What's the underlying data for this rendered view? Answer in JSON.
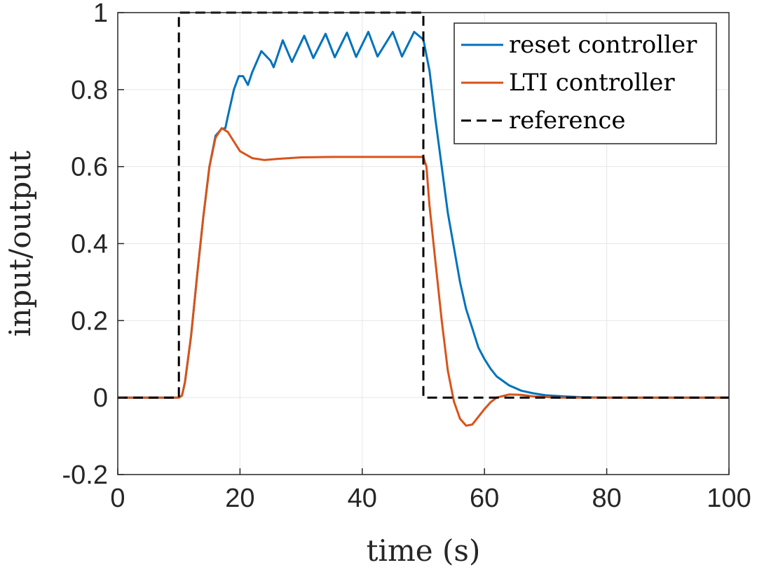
{
  "chart_data": {
    "type": "line",
    "xlabel": "time (s)",
    "ylabel": "input/output",
    "xlim": [
      0,
      100
    ],
    "ylim": [
      -0.2,
      1
    ],
    "xticks": [
      0,
      20,
      40,
      60,
      80,
      100
    ],
    "yticks": [
      -0.2,
      0,
      0.2,
      0.4,
      0.6,
      0.8,
      1
    ],
    "x_tick_labels": [
      "0",
      "20",
      "40",
      "60",
      "80",
      "100"
    ],
    "y_tick_labels": [
      "-0.2",
      "0",
      "0.2",
      "0.4",
      "0.6",
      "0.8",
      "1"
    ],
    "grid": true,
    "legend_position": "top-right",
    "series": [
      {
        "name": "reset controller",
        "color": "#0072BD",
        "style": "solid",
        "points": [
          [
            0,
            0
          ],
          [
            10,
            0
          ],
          [
            10.5,
            0.005
          ],
          [
            11,
            0.04
          ],
          [
            12,
            0.16
          ],
          [
            13,
            0.32
          ],
          [
            14,
            0.47
          ],
          [
            15,
            0.6
          ],
          [
            16,
            0.68
          ],
          [
            17,
            0.698
          ],
          [
            17.6,
            0.7
          ],
          [
            18,
            0.73
          ],
          [
            19,
            0.8
          ],
          [
            19.8,
            0.835
          ],
          [
            20.5,
            0.835
          ],
          [
            21.3,
            0.812
          ],
          [
            22,
            0.845
          ],
          [
            23.5,
            0.9
          ],
          [
            25,
            0.875
          ],
          [
            25.5,
            0.858
          ],
          [
            27,
            0.928
          ],
          [
            28.5,
            0.872
          ],
          [
            30.5,
            0.94
          ],
          [
            32,
            0.882
          ],
          [
            34,
            0.945
          ],
          [
            35.5,
            0.884
          ],
          [
            37.5,
            0.948
          ],
          [
            39,
            0.885
          ],
          [
            41,
            0.95
          ],
          [
            42.5,
            0.886
          ],
          [
            45,
            0.95
          ],
          [
            46.5,
            0.886
          ],
          [
            48.5,
            0.95
          ],
          [
            50,
            0.93
          ],
          [
            51,
            0.85
          ],
          [
            52,
            0.72
          ],
          [
            53,
            0.6
          ],
          [
            54,
            0.48
          ],
          [
            55,
            0.39
          ],
          [
            56,
            0.3
          ],
          [
            57,
            0.23
          ],
          [
            58,
            0.18
          ],
          [
            59,
            0.13
          ],
          [
            60,
            0.1
          ],
          [
            61,
            0.075
          ],
          [
            62,
            0.055
          ],
          [
            64,
            0.032
          ],
          [
            66,
            0.018
          ],
          [
            68,
            0.011
          ],
          [
            70,
            0.006
          ],
          [
            73,
            0.003
          ],
          [
            76,
            0.001
          ],
          [
            80,
            0
          ],
          [
            100,
            0
          ]
        ]
      },
      {
        "name": "LTI controller",
        "color": "#D95319",
        "style": "solid",
        "points": [
          [
            0,
            0
          ],
          [
            10,
            0
          ],
          [
            10.5,
            0.005
          ],
          [
            11,
            0.04
          ],
          [
            12,
            0.16
          ],
          [
            13,
            0.32
          ],
          [
            14,
            0.47
          ],
          [
            15,
            0.6
          ],
          [
            16,
            0.675
          ],
          [
            17,
            0.7
          ],
          [
            18,
            0.69
          ],
          [
            19,
            0.665
          ],
          [
            20,
            0.64
          ],
          [
            22,
            0.622
          ],
          [
            24,
            0.617
          ],
          [
            26,
            0.62
          ],
          [
            30,
            0.624
          ],
          [
            35,
            0.625
          ],
          [
            50,
            0.625
          ],
          [
            50.5,
            0.6
          ],
          [
            51,
            0.5
          ],
          [
            52,
            0.35
          ],
          [
            53,
            0.2
          ],
          [
            54,
            0.07
          ],
          [
            55,
            -0.01
          ],
          [
            56,
            -0.055
          ],
          [
            57,
            -0.073
          ],
          [
            58,
            -0.07
          ],
          [
            59,
            -0.05
          ],
          [
            60,
            -0.03
          ],
          [
            61,
            -0.012
          ],
          [
            62,
            0
          ],
          [
            64,
            0.008
          ],
          [
            66,
            0.007
          ],
          [
            68,
            0.003
          ],
          [
            72,
            0
          ],
          [
            100,
            0
          ]
        ]
      },
      {
        "name": "reference",
        "color": "#000000",
        "style": "dashed",
        "points": [
          [
            0,
            0
          ],
          [
            10,
            0
          ],
          [
            10,
            1
          ],
          [
            50,
            1
          ],
          [
            50,
            0
          ],
          [
            100,
            0
          ]
        ]
      }
    ]
  }
}
